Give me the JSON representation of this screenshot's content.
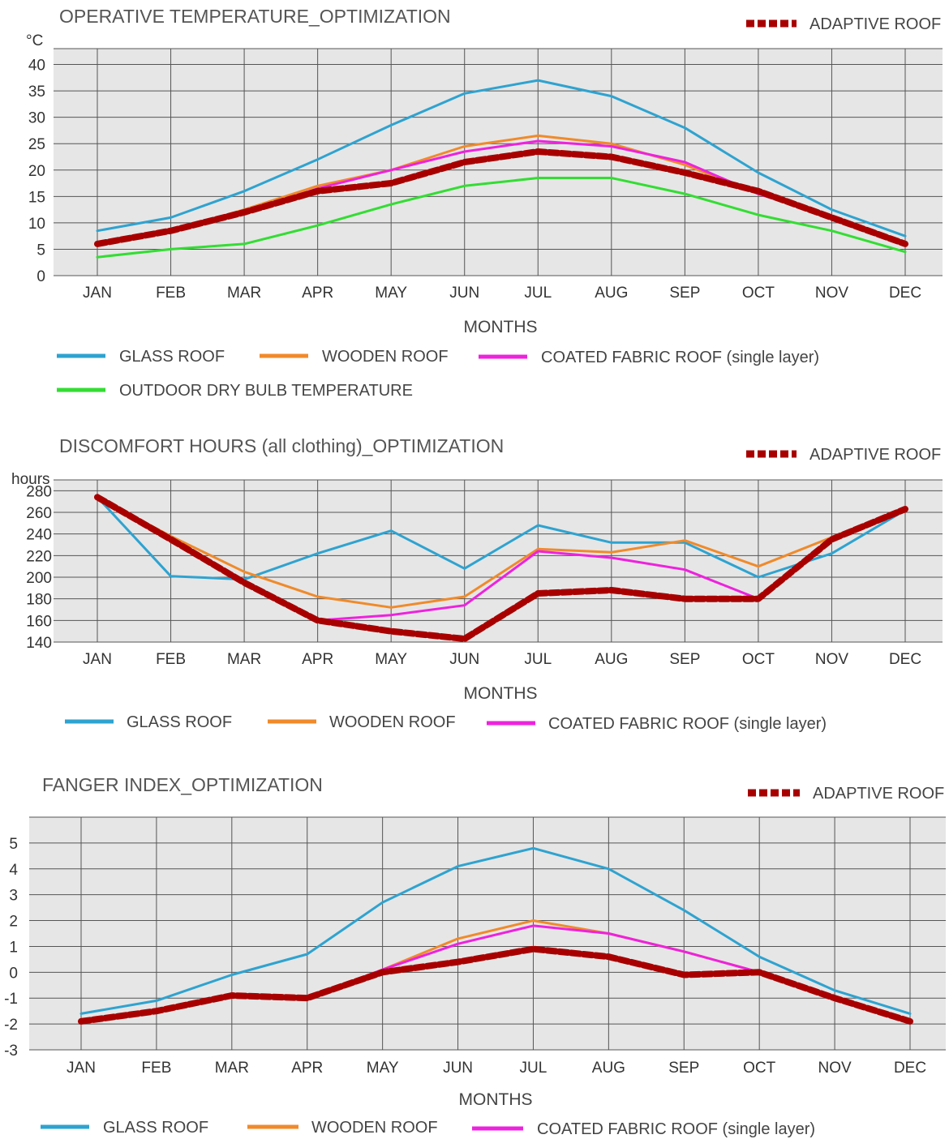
{
  "colors": {
    "glass": "#2ea3d0",
    "wooden": "#f08a2a",
    "fabric": "#ee22dd",
    "outdoor": "#33dd33",
    "adaptive": "#a80000",
    "plot_bg": "#e6e6e6",
    "grid": "#555555"
  },
  "chart_data": [
    {
      "type": "line",
      "title": "OPERATIVE TEMPERATURE_OPTIMIZATION",
      "ylabel": "°C",
      "xlabel": "MONTHS",
      "categories": [
        "JAN",
        "FEB",
        "MAR",
        "APR",
        "MAY",
        "JUN",
        "JUL",
        "AUG",
        "SEP",
        "OCT",
        "NOV",
        "DEC"
      ],
      "yticks": [
        0,
        5,
        10,
        15,
        20,
        25,
        30,
        35,
        40
      ],
      "ylim": [
        0,
        43
      ],
      "grid": true,
      "series": [
        {
          "name": "GLASS ROOF",
          "key": "glass",
          "values": [
            8.5,
            11,
            16,
            22,
            28.5,
            34.5,
            37,
            34,
            28,
            19.5,
            12.5,
            7.5
          ]
        },
        {
          "name": "WOODEN ROOF",
          "key": "wooden",
          "values": [
            6,
            8.5,
            12.5,
            17,
            20,
            24.5,
            26.5,
            25,
            21,
            15.5,
            11,
            6
          ]
        },
        {
          "name": "COATED FABRIC ROOF (single layer)",
          "key": "fabric",
          "values": [
            6,
            8.5,
            12,
            16.5,
            20,
            23.5,
            25.5,
            24.5,
            21.5,
            15.5,
            11,
            6
          ]
        },
        {
          "name": "OUTDOOR DRY BULB TEMPERATURE",
          "key": "outdoor",
          "values": [
            3.5,
            5,
            6,
            9.5,
            13.5,
            17,
            18.5,
            18.5,
            15.5,
            11.5,
            8.5,
            4.5
          ]
        },
        {
          "name": "ADAPTIVE ROOF",
          "key": "adaptive",
          "values": [
            6,
            8.5,
            12,
            16,
            17.5,
            21.5,
            23.5,
            22.5,
            19.5,
            16,
            11,
            6
          ]
        }
      ]
    },
    {
      "type": "line",
      "title": "DISCOMFORT HOURS (all clothing)_OPTIMIZATION",
      "ylabel": "hours",
      "xlabel": "MONTHS",
      "categories": [
        "JAN",
        "FEB",
        "MAR",
        "APR",
        "MAY",
        "JUN",
        "JUL",
        "AUG",
        "SEP",
        "OCT",
        "NOV",
        "DEC"
      ],
      "yticks": [
        140,
        160,
        180,
        200,
        220,
        240,
        260,
        280
      ],
      "ylim": [
        140,
        290
      ],
      "grid": true,
      "series": [
        {
          "name": "GLASS ROOF",
          "key": "glass",
          "values": [
            274,
            201,
            198,
            222,
            243,
            208,
            248,
            232,
            232,
            200,
            222,
            262
          ]
        },
        {
          "name": "WOODEN ROOF",
          "key": "wooden",
          "values": [
            274,
            238,
            205,
            182,
            172,
            182,
            226,
            223,
            234,
            210,
            237,
            264
          ]
        },
        {
          "name": "COATED FABRIC ROOF (single layer)",
          "key": "fabric",
          "values": [
            274,
            235,
            195,
            160,
            165,
            174,
            224,
            218,
            207,
            180,
            235,
            263
          ]
        },
        {
          "name": "ADAPTIVE ROOF",
          "key": "adaptive",
          "values": [
            274,
            235,
            195,
            160,
            150,
            143,
            185,
            188,
            180,
            180,
            235,
            263
          ]
        }
      ]
    },
    {
      "type": "line",
      "title": "FANGER INDEX_OPTIMIZATION",
      "ylabel": "",
      "xlabel": "MONTHS",
      "categories": [
        "JAN",
        "FEB",
        "MAR",
        "APR",
        "MAY",
        "JUN",
        "JUL",
        "AUG",
        "SEP",
        "OCT",
        "NOV",
        "DEC"
      ],
      "yticks": [
        -3,
        -2,
        -1,
        0,
        1,
        2,
        3,
        4,
        5
      ],
      "ylim": [
        -3,
        6
      ],
      "grid": true,
      "series": [
        {
          "name": "GLASS ROOF",
          "key": "glass",
          "values": [
            -1.6,
            -1.1,
            -0.1,
            0.7,
            2.7,
            4.1,
            4.8,
            4.0,
            2.4,
            0.6,
            -0.7,
            -1.6
          ]
        },
        {
          "name": "WOODEN ROOF",
          "key": "wooden",
          "values": [
            -1.9,
            -1.5,
            -0.9,
            -1.0,
            0.1,
            1.3,
            2.0,
            1.5,
            0.8,
            0.0,
            -1.0,
            -1.9
          ]
        },
        {
          "name": "COATED FABRIC ROOF (single layer)",
          "key": "fabric",
          "values": [
            -1.9,
            -1.5,
            -0.9,
            -1.0,
            0.1,
            1.1,
            1.8,
            1.5,
            0.8,
            0.0,
            -1.0,
            -1.9
          ]
        },
        {
          "name": "ADAPTIVE ROOF",
          "key": "adaptive",
          "values": [
            -1.9,
            -1.5,
            -0.9,
            -1.0,
            0.0,
            0.4,
            0.9,
            0.6,
            -0.1,
            0.0,
            -1.0,
            -1.9
          ]
        }
      ]
    }
  ]
}
